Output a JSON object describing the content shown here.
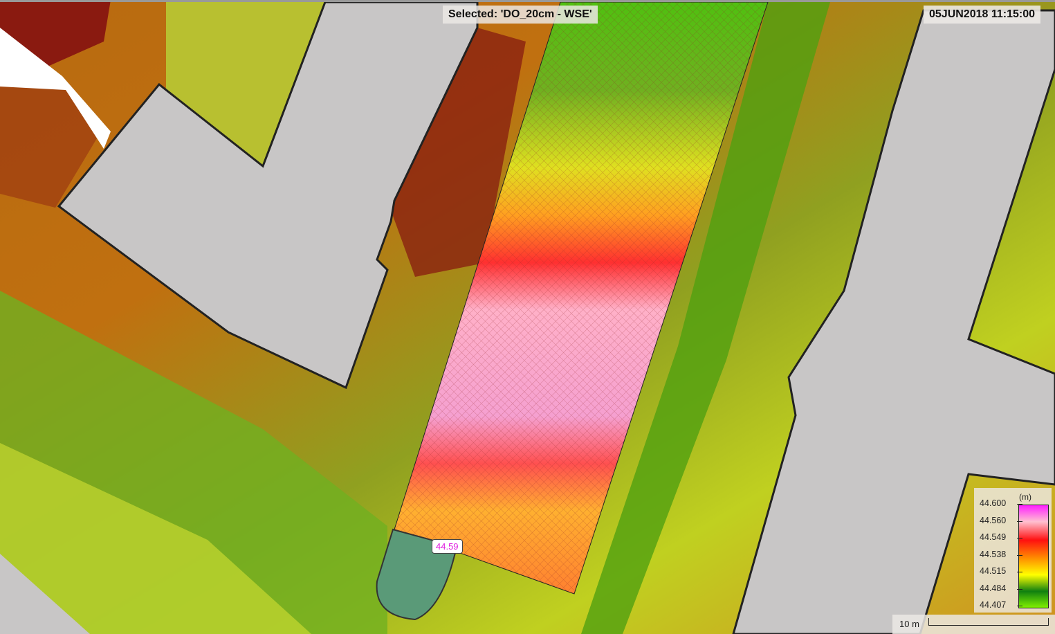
{
  "map": {
    "selected_layer_label": "Selected: 'DO_20cm - WSE'",
    "timestamp": "05JUN2018 11:15:00",
    "probe_value": "44.59",
    "legend": {
      "unit": "(m)",
      "ticks": [
        "44.600",
        "44.560",
        "44.549",
        "44.538",
        "44.515",
        "44.484",
        "44.407"
      ],
      "colors": [
        "#ff20ff",
        "#ffc0d0",
        "#ff1010",
        "#ff9000",
        "#ffff00",
        "#108010",
        "#80f000"
      ]
    },
    "scale_bar": "10 m"
  }
}
